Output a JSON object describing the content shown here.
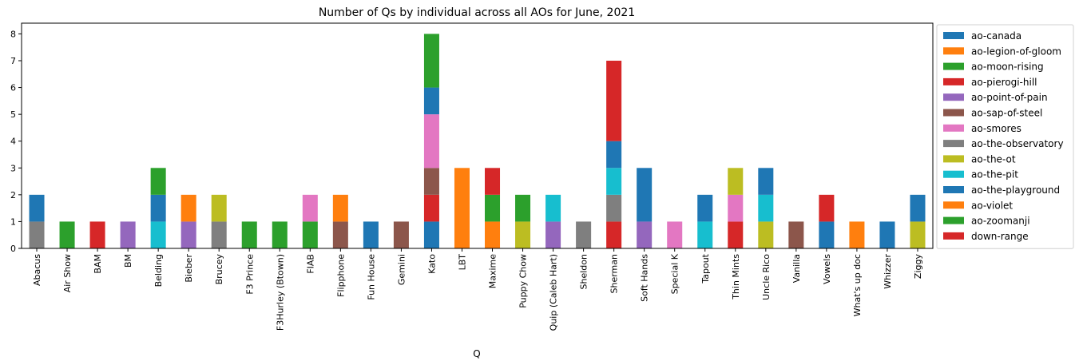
{
  "chart_data": {
    "type": "bar",
    "stacked": true,
    "title": "Number of Qs by individual across all AOs for June, 2021",
    "xlabel": "Q",
    "ylabel": "",
    "ylim": [
      0,
      8.4
    ],
    "yticks": [
      0,
      1,
      2,
      3,
      4,
      5,
      6,
      7,
      8
    ],
    "grid": false,
    "legend_position": "right",
    "categories": [
      "Abacus",
      "Air Show",
      "BAM",
      "BM",
      "Belding",
      "Bieber",
      "Brucey",
      "F3 Prince",
      "F3Hurley (Btown)",
      "FIAB",
      "Flipphone",
      "Fun House",
      "Gemini",
      "Kato",
      "LBT",
      "Maxime",
      "Puppy Chow",
      "Quip (Caleb Hart)",
      "Sheldon",
      "Sherman",
      "Soft Hands",
      "Special K",
      "Tapout",
      "Thin Mints",
      "Uncle Rico",
      "Vanilla",
      "Vowels",
      "What's up doc",
      "Whizzer",
      "Ziggy"
    ],
    "series": [
      {
        "name": "ao-canada",
        "color": "#1f77b4",
        "values": [
          0,
          0,
          0,
          0,
          0,
          0,
          0,
          0,
          0,
          0,
          0,
          0,
          0,
          1,
          0,
          0,
          0,
          0,
          0,
          0,
          0,
          0,
          0,
          0,
          0,
          0,
          0,
          0,
          0,
          0
        ]
      },
      {
        "name": "ao-legion-of-gloom",
        "color": "#ff7f0e",
        "values": [
          0,
          0,
          0,
          0,
          0,
          0,
          0,
          0,
          0,
          0,
          0,
          0,
          0,
          0,
          3,
          1,
          0,
          0,
          0,
          0,
          0,
          0,
          0,
          0,
          0,
          0,
          0,
          0,
          0,
          0
        ]
      },
      {
        "name": "ao-moon-rising",
        "color": "#2ca02c",
        "values": [
          0,
          0,
          0,
          0,
          0,
          0,
          0,
          0,
          0,
          1,
          0,
          0,
          0,
          0,
          0,
          0,
          0,
          0,
          0,
          0,
          0,
          0,
          0,
          0,
          0,
          0,
          0,
          0,
          0,
          0
        ]
      },
      {
        "name": "ao-pierogi-hill",
        "color": "#d62728",
        "values": [
          0,
          0,
          1,
          0,
          0,
          0,
          0,
          0,
          0,
          0,
          0,
          0,
          0,
          1,
          0,
          0,
          0,
          0,
          0,
          1,
          0,
          0,
          0,
          1,
          0,
          0,
          0,
          0,
          0,
          0
        ]
      },
      {
        "name": "ao-point-of-pain",
        "color": "#9467bd",
        "values": [
          0,
          0,
          0,
          1,
          0,
          1,
          0,
          0,
          0,
          0,
          0,
          0,
          0,
          0,
          0,
          0,
          0,
          1,
          0,
          0,
          1,
          0,
          0,
          0,
          0,
          0,
          0,
          0,
          0,
          0
        ]
      },
      {
        "name": "ao-sap-of-steel",
        "color": "#8c564b",
        "values": [
          0,
          0,
          0,
          0,
          0,
          0,
          0,
          0,
          0,
          0,
          1,
          0,
          1,
          1,
          0,
          0,
          0,
          0,
          0,
          0,
          0,
          0,
          0,
          0,
          0,
          1,
          0,
          0,
          0,
          0
        ]
      },
      {
        "name": "ao-smores",
        "color": "#e377c2",
        "values": [
          0,
          0,
          0,
          0,
          0,
          0,
          0,
          0,
          0,
          1,
          0,
          0,
          0,
          2,
          0,
          0,
          0,
          0,
          0,
          0,
          0,
          1,
          0,
          1,
          0,
          0,
          0,
          0,
          0,
          0
        ]
      },
      {
        "name": "ao-the-observatory",
        "color": "#7f7f7f",
        "values": [
          1,
          0,
          0,
          0,
          0,
          0,
          1,
          0,
          0,
          0,
          0,
          0,
          0,
          0,
          0,
          0,
          0,
          0,
          1,
          1,
          0,
          0,
          0,
          0,
          0,
          0,
          0,
          0,
          0,
          0
        ]
      },
      {
        "name": "ao-the-ot",
        "color": "#bcbd22",
        "values": [
          0,
          0,
          0,
          0,
          0,
          0,
          1,
          0,
          0,
          0,
          0,
          0,
          0,
          0,
          0,
          0,
          1,
          0,
          0,
          0,
          0,
          0,
          0,
          1,
          1,
          0,
          0,
          0,
          0,
          1
        ]
      },
      {
        "name": "ao-the-pit",
        "color": "#17becf",
        "values": [
          0,
          0,
          0,
          0,
          1,
          0,
          0,
          0,
          0,
          0,
          0,
          0,
          0,
          0,
          0,
          0,
          0,
          1,
          0,
          1,
          0,
          0,
          1,
          0,
          1,
          0,
          0,
          0,
          0,
          0
        ]
      },
      {
        "name": "ao-the-playground",
        "color": "#1f77b4",
        "values": [
          1,
          0,
          0,
          0,
          1,
          0,
          0,
          0,
          0,
          0,
          0,
          1,
          0,
          1,
          0,
          0,
          0,
          0,
          0,
          1,
          2,
          0,
          1,
          0,
          1,
          0,
          1,
          0,
          1,
          1
        ]
      },
      {
        "name": "ao-violet",
        "color": "#ff7f0e",
        "values": [
          0,
          0,
          0,
          0,
          0,
          1,
          0,
          0,
          0,
          0,
          1,
          0,
          0,
          0,
          0,
          0,
          0,
          0,
          0,
          0,
          0,
          0,
          0,
          0,
          0,
          0,
          0,
          1,
          0,
          0
        ]
      },
      {
        "name": "ao-zoomanji",
        "color": "#2ca02c",
        "values": [
          0,
          1,
          0,
          0,
          1,
          0,
          0,
          1,
          1,
          0,
          0,
          0,
          0,
          2,
          0,
          1,
          1,
          0,
          0,
          0,
          0,
          0,
          0,
          0,
          0,
          0,
          0,
          0,
          0,
          0
        ]
      },
      {
        "name": "down-range",
        "color": "#d62728",
        "values": [
          0,
          0,
          0,
          0,
          0,
          0,
          0,
          0,
          0,
          0,
          0,
          0,
          0,
          0,
          0,
          1,
          0,
          0,
          0,
          3,
          0,
          0,
          0,
          0,
          0,
          0,
          1,
          0,
          0,
          0
        ]
      }
    ]
  }
}
